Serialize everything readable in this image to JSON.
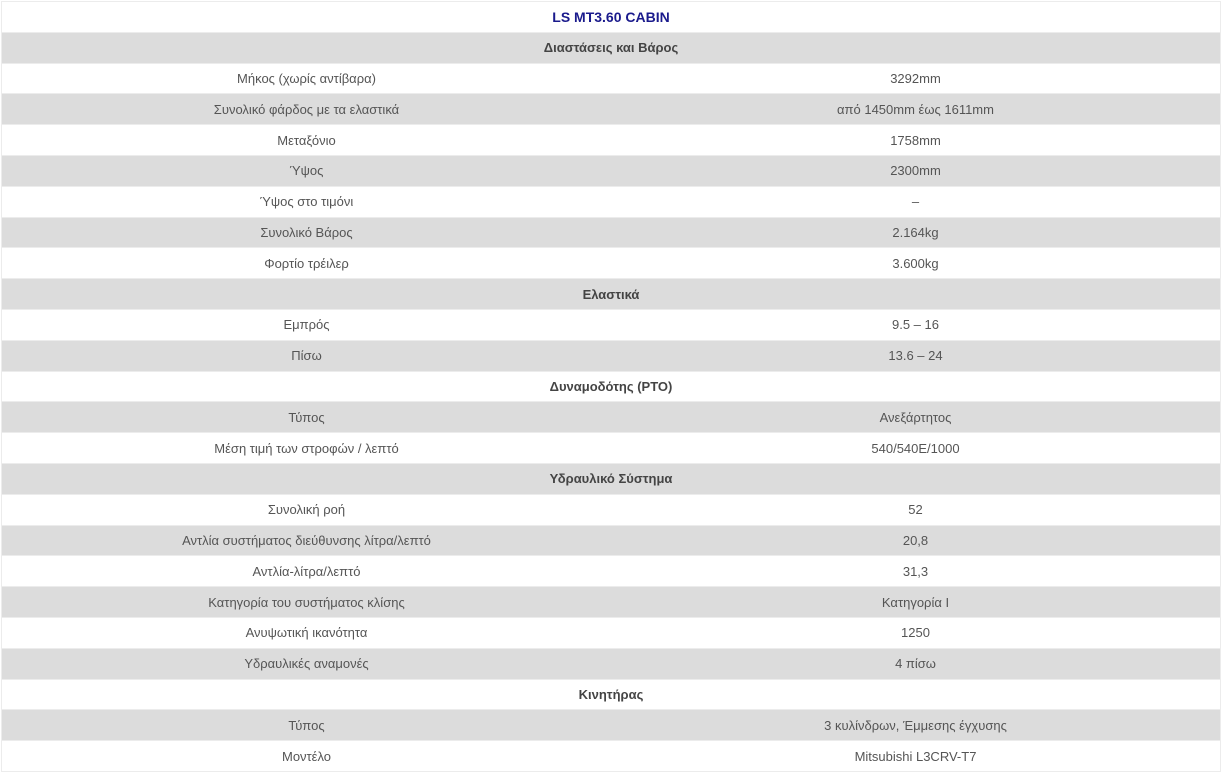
{
  "title": "LS MT3.60 CABIN",
  "sections": [
    {
      "heading": "Διαστάσεις και Βάρος",
      "rows": [
        [
          "Μήκος (χωρίς αντίβαρα)",
          "3292mm"
        ],
        [
          "Συνολικό φάρδος με τα ελαστικά",
          "από 1450mm έως 1611mm"
        ],
        [
          "Μεταξόνιο",
          "1758mm"
        ],
        [
          "Ύψος",
          "2300mm"
        ],
        [
          "Ύψος στο τιμόνι",
          "–"
        ],
        [
          "Συνολικό Βάρος",
          "2.164kg"
        ],
        [
          "Φορτίο τρέιλερ",
          "3.600kg"
        ]
      ]
    },
    {
      "heading": "Ελαστικά",
      "rows": [
        [
          "Εμπρός",
          "9.5 – 16"
        ],
        [
          "Πίσω",
          "13.6 – 24"
        ]
      ]
    },
    {
      "heading": "Δυναμοδότης (PTO)",
      "rows": [
        [
          "Τύπος",
          "Ανεξάρτητος"
        ],
        [
          "Μέση τιμή των στροφών / λεπτό",
          "540/540E/1000"
        ]
      ]
    },
    {
      "heading": "Υδραυλικό Σύστημα",
      "rows": [
        [
          "Συνολική ροή",
          "52"
        ],
        [
          "Αντλία συστήματος διεύθυνσης λίτρα/λεπτό",
          "20,8"
        ],
        [
          "Αντλία-λίτρα/λεπτό",
          "31,3"
        ],
        [
          "Κατηγορία του συστήματος κλίσης",
          "Κατηγορία I"
        ],
        [
          "Ανυψωτική ικανότητα",
          "1250"
        ],
        [
          "Υδραυλικές αναμονές",
          "4 πίσω"
        ]
      ]
    },
    {
      "heading": "Κινητήρας",
      "rows": [
        [
          "Τύπος",
          "3 κυλίνδρων, Έμμεσης έγχυσης"
        ],
        [
          "Μοντέλο",
          "Mitsubishi L3CRV-T7"
        ]
      ]
    }
  ]
}
